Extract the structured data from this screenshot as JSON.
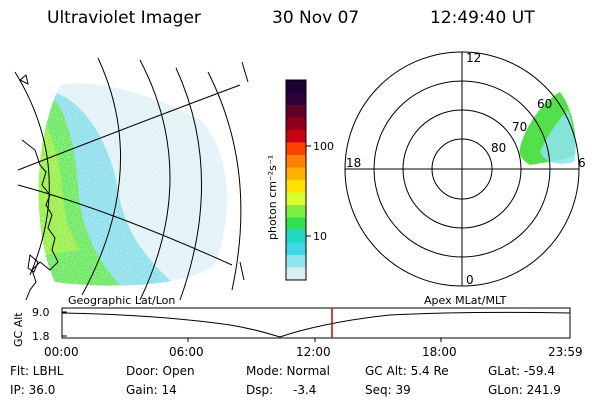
{
  "header": {
    "instrument": "Ultraviolet Imager",
    "date": "30 Nov 07",
    "time": "12:49:40 UT"
  },
  "colorbar": {
    "unit": "photon cm⁻²s⁻¹",
    "ticks": [
      "100",
      "10"
    ],
    "colors": [
      "#1a0033",
      "#30003a",
      "#600028",
      "#900018",
      "#c80010",
      "#ff4000",
      "#ff8000",
      "#ffb000",
      "#ffe000",
      "#d8ff30",
      "#80f040",
      "#30e050",
      "#20d8c0",
      "#40d8e8",
      "#90e4f0",
      "#d8f0f4"
    ]
  },
  "polar_plot": {
    "mlt_labels": {
      "top": "12",
      "left": "18",
      "right": "6",
      "bottom": "0"
    },
    "lat_labels": [
      "60",
      "70",
      "80"
    ]
  },
  "timeline": {
    "left_label": "Geographic Lat/Lon",
    "right_label": "Apex MLat/MLT",
    "axis_title": "GC Alt",
    "y_max": "9.0",
    "y_min": "1.8",
    "x_ticks": [
      "00:00",
      "06:00",
      "12:00",
      "18:00",
      "23:59"
    ],
    "current_time_marker_color": "#cc0000"
  },
  "footer": {
    "row1": {
      "flt": "Flt: LBHL",
      "door": "Door: Open",
      "mode": "Mode: Normal",
      "gc_alt": "GC Alt: 5.4 Re",
      "glat": "GLat: -59.4"
    },
    "row2": {
      "ip": "IP: 36.0",
      "gain": "Gain: 14",
      "dsp_label": "Dsp:",
      "dsp_value": "-3.4",
      "seq": "Seq: 39",
      "glon": "GLon: 241.9"
    }
  }
}
